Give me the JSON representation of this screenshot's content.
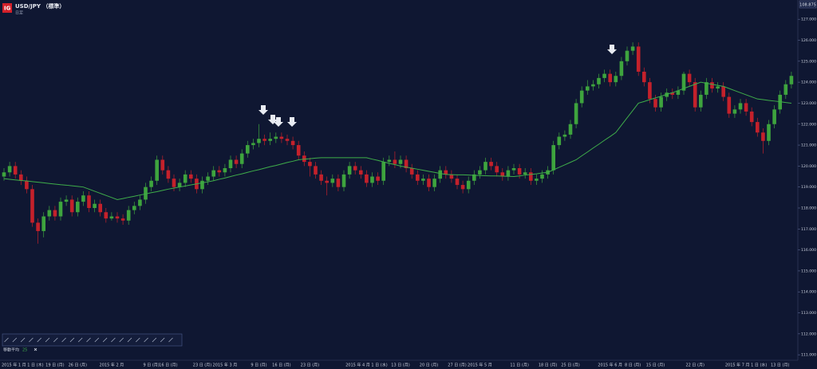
{
  "chart_data": {
    "type": "candlestick",
    "title": "USD/JPY （標準）",
    "subtitle": "日足",
    "price_tag": "108.875",
    "categories": [
      null,
      null,
      "2015 年 1 月 1 日 (木)",
      null,
      null,
      null,
      null,
      null,
      null,
      "19 日 (月)",
      null,
      null,
      null,
      "26 日 (月)",
      null,
      null,
      null,
      null,
      null,
      "2015 年 2 月",
      null,
      null,
      null,
      null,
      null,
      null,
      "9 日 (月)",
      null,
      null,
      "16 日 (月)",
      null,
      null,
      null,
      null,
      null,
      "23 日 (月)",
      null,
      null,
      null,
      "2015 年 3 月",
      null,
      null,
      null,
      null,
      null,
      "9 日 (月)",
      null,
      null,
      null,
      "16 日 (月)",
      null,
      null,
      null,
      null,
      "23 日 (月)",
      null,
      null,
      null,
      null,
      null,
      null,
      null,
      null,
      null,
      "2015 年 4 月 1 日 (水)",
      null,
      null,
      null,
      null,
      null,
      "13 日 (月)",
      null,
      null,
      null,
      null,
      "20 日 (月)",
      null,
      null,
      null,
      null,
      "27 日 (月)",
      null,
      null,
      null,
      "2015 年 5 月",
      null,
      null,
      null,
      null,
      null,
      null,
      "11 日 (月)",
      null,
      null,
      null,
      null,
      "18 日 (月)",
      null,
      null,
      null,
      "25 日 (月)",
      null,
      null,
      null,
      null,
      null,
      null,
      "2015 年 6 月",
      null,
      null,
      null,
      "8 日 (月)",
      null,
      null,
      null,
      "15 日 (月)",
      null,
      null,
      null,
      null,
      null,
      null,
      "22 日 (月)",
      null,
      null,
      null,
      null,
      null,
      null,
      null,
      null,
      "2015 年 7 月 1 日 (水)",
      null,
      null,
      null,
      null,
      null,
      "13 日 (月)",
      null,
      null
    ],
    "series": [
      {
        "type": "candlestick",
        "up_color": "#3ea43e",
        "down_color": "#c4212b",
        "values": [
          [
            119.5,
            119.9,
            119.3,
            119.7
          ],
          [
            119.7,
            120.2,
            119.5,
            120.0
          ],
          [
            120.0,
            120.2,
            119.4,
            119.6
          ],
          [
            119.6,
            119.8,
            119.1,
            119.3
          ],
          [
            119.3,
            119.5,
            118.7,
            118.9
          ],
          [
            118.9,
            119.1,
            117.1,
            117.3
          ],
          [
            117.3,
            117.5,
            116.3,
            116.9
          ],
          [
            116.9,
            117.8,
            116.6,
            117.6
          ],
          [
            117.6,
            118.1,
            117.4,
            117.9
          ],
          [
            117.9,
            118.1,
            117.4,
            117.6
          ],
          [
            117.6,
            118.5,
            117.4,
            118.3
          ],
          [
            118.3,
            118.6,
            118.1,
            118.4
          ],
          [
            118.4,
            118.6,
            117.6,
            117.8
          ],
          [
            117.8,
            118.5,
            117.6,
            118.3
          ],
          [
            118.3,
            118.8,
            118.1,
            118.6
          ],
          [
            118.6,
            118.8,
            117.8,
            118.0
          ],
          [
            118.0,
            118.4,
            117.8,
            118.2
          ],
          [
            118.2,
            118.4,
            117.6,
            117.8
          ],
          [
            117.8,
            118.0,
            117.3,
            117.5
          ],
          [
            117.5,
            117.8,
            117.4,
            117.6
          ],
          [
            117.6,
            117.8,
            117.3,
            117.5
          ],
          [
            117.5,
            117.7,
            117.2,
            117.4
          ],
          [
            117.4,
            118.1,
            117.2,
            117.9
          ],
          [
            117.9,
            118.3,
            117.7,
            118.1
          ],
          [
            118.1,
            118.6,
            117.9,
            118.4
          ],
          [
            118.4,
            119.2,
            118.2,
            119.0
          ],
          [
            119.0,
            119.5,
            118.8,
            119.3
          ],
          [
            119.3,
            120.5,
            119.1,
            120.3
          ],
          [
            120.3,
            120.5,
            119.6,
            119.8
          ],
          [
            119.8,
            120.0,
            119.2,
            119.4
          ],
          [
            119.4,
            119.6,
            118.8,
            119.0
          ],
          [
            119.0,
            119.4,
            118.8,
            119.2
          ],
          [
            119.2,
            119.8,
            119.0,
            119.6
          ],
          [
            119.6,
            119.8,
            119.2,
            119.4
          ],
          [
            119.4,
            119.6,
            118.7,
            118.9
          ],
          [
            118.9,
            119.5,
            118.7,
            119.3
          ],
          [
            119.3,
            119.7,
            119.1,
            119.5
          ],
          [
            119.5,
            120.0,
            119.3,
            119.8
          ],
          [
            119.8,
            120.0,
            119.5,
            119.7
          ],
          [
            119.7,
            120.1,
            119.5,
            119.9
          ],
          [
            119.9,
            120.5,
            119.7,
            120.3
          ],
          [
            120.3,
            120.5,
            119.9,
            120.1
          ],
          [
            120.1,
            120.8,
            119.9,
            120.6
          ],
          [
            120.6,
            121.2,
            120.4,
            121.0
          ],
          [
            121.0,
            121.3,
            120.8,
            121.1
          ],
          [
            121.1,
            122.0,
            120.9,
            121.3
          ],
          [
            121.3,
            121.5,
            121.0,
            121.2
          ],
          [
            121.2,
            121.6,
            121.0,
            121.3
          ],
          [
            121.3,
            121.6,
            121.1,
            121.4
          ],
          [
            121.4,
            121.6,
            121.1,
            121.3
          ],
          [
            121.3,
            121.5,
            121.0,
            121.2
          ],
          [
            121.2,
            121.4,
            120.8,
            121.0
          ],
          [
            121.0,
            121.2,
            120.3,
            120.5
          ],
          [
            120.5,
            120.7,
            120.0,
            120.2
          ],
          [
            120.2,
            120.4,
            119.5,
            120.0
          ],
          [
            120.0,
            120.2,
            119.4,
            119.6
          ],
          [
            119.6,
            119.8,
            119.1,
            119.3
          ],
          [
            119.3,
            119.5,
            118.6,
            119.2
          ],
          [
            119.2,
            119.6,
            119.0,
            119.4
          ],
          [
            119.4,
            119.6,
            118.8,
            119.0
          ],
          [
            119.0,
            119.8,
            118.8,
            119.6
          ],
          [
            119.6,
            120.2,
            119.4,
            120.0
          ],
          [
            120.0,
            120.2,
            119.6,
            119.8
          ],
          [
            119.8,
            120.0,
            119.4,
            119.6
          ],
          [
            119.6,
            119.8,
            119.0,
            119.2
          ],
          [
            119.2,
            119.7,
            119.0,
            119.5
          ],
          [
            119.5,
            119.7,
            119.1,
            119.3
          ],
          [
            119.3,
            120.4,
            119.1,
            120.2
          ],
          [
            120.2,
            120.5,
            120.0,
            120.3
          ],
          [
            120.3,
            120.7,
            119.9,
            120.1
          ],
          [
            120.1,
            120.5,
            119.9,
            120.3
          ],
          [
            120.3,
            120.5,
            119.7,
            119.9
          ],
          [
            119.9,
            120.1,
            119.4,
            119.6
          ],
          [
            119.6,
            119.8,
            119.1,
            119.3
          ],
          [
            119.3,
            119.6,
            119.1,
            119.4
          ],
          [
            119.4,
            119.6,
            118.8,
            119.0
          ],
          [
            119.0,
            119.6,
            118.8,
            119.4
          ],
          [
            119.4,
            120.0,
            119.2,
            119.8
          ],
          [
            119.8,
            120.0,
            119.4,
            119.6
          ],
          [
            119.6,
            119.8,
            119.2,
            119.4
          ],
          [
            119.4,
            119.6,
            118.9,
            119.1
          ],
          [
            119.1,
            119.3,
            118.7,
            118.9
          ],
          [
            118.9,
            119.5,
            118.7,
            119.3
          ],
          [
            119.3,
            119.8,
            119.1,
            119.6
          ],
          [
            119.6,
            120.0,
            119.4,
            119.8
          ],
          [
            119.8,
            120.4,
            119.6,
            120.2
          ],
          [
            120.2,
            120.4,
            119.8,
            120.0
          ],
          [
            120.0,
            120.2,
            119.5,
            119.7
          ],
          [
            119.7,
            119.9,
            119.3,
            119.5
          ],
          [
            119.5,
            120.0,
            119.3,
            119.8
          ],
          [
            119.8,
            120.1,
            119.6,
            119.9
          ],
          [
            119.9,
            120.1,
            119.4,
            119.6
          ],
          [
            119.6,
            119.9,
            119.4,
            119.7
          ],
          [
            119.7,
            119.9,
            119.1,
            119.3
          ],
          [
            119.3,
            119.6,
            119.1,
            119.4
          ],
          [
            119.4,
            119.8,
            119.2,
            119.6
          ],
          [
            119.6,
            120.0,
            119.4,
            119.8
          ],
          [
            119.8,
            121.2,
            119.6,
            121.0
          ],
          [
            121.0,
            121.6,
            120.8,
            121.4
          ],
          [
            121.4,
            121.7,
            121.2,
            121.5
          ],
          [
            121.5,
            122.2,
            121.3,
            122.0
          ],
          [
            122.0,
            123.2,
            121.8,
            123.0
          ],
          [
            123.0,
            123.8,
            122.8,
            123.6
          ],
          [
            123.6,
            124.1,
            123.4,
            123.8
          ],
          [
            123.8,
            124.1,
            123.6,
            123.9
          ],
          [
            123.9,
            124.4,
            123.7,
            124.2
          ],
          [
            124.2,
            124.6,
            124.0,
            124.4
          ],
          [
            124.4,
            124.6,
            123.8,
            124.0
          ],
          [
            124.0,
            124.5,
            123.8,
            124.3
          ],
          [
            124.3,
            125.2,
            124.1,
            125.0
          ],
          [
            125.0,
            125.7,
            124.8,
            125.5
          ],
          [
            125.5,
            125.9,
            125.3,
            125.7
          ],
          [
            125.7,
            125.9,
            124.3,
            124.5
          ],
          [
            124.5,
            124.7,
            123.8,
            124.0
          ],
          [
            124.0,
            124.2,
            123.0,
            123.2
          ],
          [
            123.2,
            123.4,
            122.6,
            122.8
          ],
          [
            122.8,
            123.5,
            122.6,
            123.3
          ],
          [
            123.3,
            123.7,
            123.1,
            123.5
          ],
          [
            123.5,
            123.7,
            123.2,
            123.4
          ],
          [
            123.4,
            123.8,
            123.2,
            123.6
          ],
          [
            123.6,
            124.5,
            123.4,
            124.4
          ],
          [
            124.4,
            124.6,
            123.8,
            124.0
          ],
          [
            124.0,
            124.2,
            122.6,
            122.8
          ],
          [
            122.8,
            123.6,
            122.6,
            123.4
          ],
          [
            123.4,
            124.2,
            123.2,
            124.0
          ],
          [
            124.0,
            124.2,
            123.5,
            123.7
          ],
          [
            123.7,
            124.0,
            123.5,
            123.8
          ],
          [
            123.8,
            124.0,
            123.1,
            123.3
          ],
          [
            123.3,
            123.5,
            122.3,
            122.5
          ],
          [
            122.5,
            122.9,
            122.3,
            122.7
          ],
          [
            122.7,
            123.2,
            122.5,
            123.0
          ],
          [
            123.0,
            123.2,
            122.4,
            122.6
          ],
          [
            122.6,
            122.8,
            121.9,
            122.1
          ],
          [
            122.1,
            122.3,
            121.4,
            121.6
          ],
          [
            121.6,
            121.8,
            120.6,
            121.2
          ],
          [
            121.2,
            122.2,
            121.0,
            122.0
          ],
          [
            122.0,
            122.9,
            121.8,
            122.7
          ],
          [
            122.7,
            123.6,
            122.5,
            123.4
          ],
          [
            123.4,
            124.1,
            123.2,
            123.9
          ],
          [
            123.9,
            124.5,
            123.7,
            124.3
          ]
        ]
      },
      {
        "type": "line",
        "name": "移動平均",
        "parameter": 25,
        "color": "#3fae4a",
        "values": [
          119.4,
          119.37,
          119.34,
          119.31,
          119.29,
          119.26,
          119.23,
          119.2,
          119.17,
          119.14,
          119.11,
          119.09,
          119.06,
          119.03,
          119.0,
          118.9,
          118.8,
          118.7,
          118.6,
          118.5,
          118.4,
          118.45,
          118.51,
          118.56,
          118.62,
          118.67,
          118.73,
          118.78,
          118.84,
          118.9,
          118.95,
          119.0,
          119.05,
          119.1,
          119.15,
          119.2,
          119.25,
          119.3,
          119.37,
          119.43,
          119.5,
          119.57,
          119.63,
          119.7,
          119.77,
          119.83,
          119.9,
          119.97,
          120.03,
          120.1,
          120.17,
          120.23,
          120.3,
          120.33,
          120.35,
          120.38,
          120.4,
          120.4,
          120.4,
          120.4,
          120.4,
          120.4,
          120.4,
          120.4,
          120.4,
          120.33,
          120.27,
          120.2,
          120.13,
          120.07,
          120.0,
          119.95,
          119.9,
          119.85,
          119.8,
          119.75,
          119.7,
          119.65,
          119.6,
          119.59,
          119.58,
          119.58,
          119.57,
          119.56,
          119.55,
          119.54,
          119.53,
          119.53,
          119.52,
          119.51,
          119.5,
          119.53,
          119.57,
          119.6,
          119.63,
          119.67,
          119.7,
          119.82,
          119.94,
          120.06,
          120.18,
          120.3,
          120.49,
          120.67,
          120.86,
          121.04,
          121.23,
          121.41,
          121.6,
          121.95,
          122.3,
          122.65,
          123.0,
          123.08,
          123.17,
          123.25,
          123.33,
          123.42,
          123.5,
          123.6,
          123.7,
          123.8,
          123.9,
          124.0,
          123.95,
          123.9,
          123.85,
          123.8,
          123.7,
          123.6,
          123.5,
          123.4,
          123.3,
          123.2,
          123.17,
          123.13,
          123.1,
          123.07,
          123.03,
          123.0
        ]
      }
    ],
    "ylim": [
      110.74,
      127.92
    ],
    "yticks": [
      {
        "value": 111,
        "label": "111.000"
      },
      {
        "value": 112,
        "label": "112.000"
      },
      {
        "value": 113,
        "label": "113.000"
      },
      {
        "value": 114,
        "label": "114.000"
      },
      {
        "value": 115,
        "label": "115.000"
      },
      {
        "value": 116,
        "label": "116.000"
      },
      {
        "value": 117,
        "label": "117.000"
      },
      {
        "value": 118,
        "label": "118.000"
      },
      {
        "value": 119,
        "label": "119.000"
      },
      {
        "value": 120,
        "label": "120.000"
      },
      {
        "value": 121,
        "label": "121.000"
      },
      {
        "value": 122,
        "label": "122.000"
      },
      {
        "value": 123,
        "label": "123.000"
      },
      {
        "value": 124,
        "label": "124.000"
      },
      {
        "value": 125,
        "label": "125.000"
      },
      {
        "value": 126,
        "label": "126.000"
      },
      {
        "value": 127,
        "label": "127.000"
      }
    ]
  }
}
